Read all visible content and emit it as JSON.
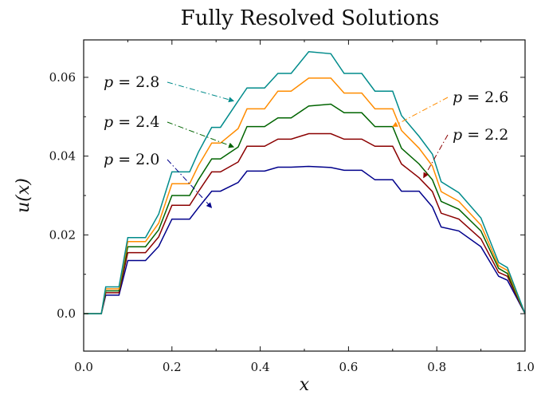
{
  "chart_data": {
    "type": "line",
    "title": "Fully Resolved Solutions",
    "xlabel": "x",
    "ylabel": "u(x)",
    "xlim": [
      0.0,
      1.0
    ],
    "ylim": [
      -0.0095,
      0.0695
    ],
    "xticks": [
      0.0,
      0.2,
      0.4,
      0.6,
      0.8,
      1.0
    ],
    "xtick_labels": [
      "0.0",
      "0.2",
      "0.4",
      "0.6",
      "0.8",
      "1.0"
    ],
    "yticks": [
      0.0,
      0.02,
      0.04,
      0.06
    ],
    "ytick_labels": [
      "0.0",
      "0.02",
      "0.04",
      "0.06"
    ],
    "grid": false,
    "legend": "none",
    "x": [
      0.0,
      0.04,
      0.05,
      0.08,
      0.1,
      0.14,
      0.17,
      0.2,
      0.24,
      0.26,
      0.29,
      0.31,
      0.35,
      0.37,
      0.41,
      0.44,
      0.47,
      0.51,
      0.56,
      0.59,
      0.63,
      0.66,
      0.7,
      0.72,
      0.76,
      0.79,
      0.81,
      0.85,
      0.9,
      0.94,
      0.96,
      1.0
    ],
    "series": [
      {
        "name": "p = 2.0",
        "color": "#00008b",
        "values": [
          0.0,
          0.0,
          0.0047,
          0.0047,
          0.0135,
          0.0135,
          0.0171,
          0.024,
          0.024,
          0.0269,
          0.0311,
          0.0311,
          0.0333,
          0.0362,
          0.0362,
          0.0372,
          0.0372,
          0.0374,
          0.0371,
          0.0364,
          0.0364,
          0.034,
          0.034,
          0.0311,
          0.0311,
          0.0271,
          0.022,
          0.021,
          0.017,
          0.0095,
          0.0085,
          0.0
        ]
      },
      {
        "name": "p = 2.2",
        "color": "#8b0000",
        "values": [
          0.0,
          0.0,
          0.0053,
          0.0053,
          0.0155,
          0.0155,
          0.0195,
          0.0275,
          0.0275,
          0.031,
          0.036,
          0.036,
          0.0385,
          0.0425,
          0.0425,
          0.0443,
          0.0443,
          0.0457,
          0.0457,
          0.0443,
          0.0443,
          0.0425,
          0.0425,
          0.038,
          0.0345,
          0.031,
          0.0255,
          0.024,
          0.019,
          0.0105,
          0.0095,
          0.0
        ]
      },
      {
        "name": "p = 2.4",
        "color": "#006400",
        "values": [
          0.0,
          0.0,
          0.0058,
          0.0058,
          0.017,
          0.017,
          0.0213,
          0.03,
          0.03,
          0.034,
          0.0393,
          0.0393,
          0.0423,
          0.0475,
          0.0475,
          0.0497,
          0.0497,
          0.0527,
          0.0532,
          0.051,
          0.051,
          0.0475,
          0.0475,
          0.042,
          0.038,
          0.034,
          0.0285,
          0.0265,
          0.021,
          0.0115,
          0.0102,
          0.0
        ]
      },
      {
        "name": "p = 2.6",
        "color": "#ff8c00",
        "values": [
          0.0,
          0.0,
          0.0063,
          0.0063,
          0.0183,
          0.0183,
          0.023,
          0.033,
          0.033,
          0.0376,
          0.0433,
          0.0433,
          0.047,
          0.052,
          0.052,
          0.0565,
          0.0565,
          0.0598,
          0.0598,
          0.056,
          0.056,
          0.052,
          0.052,
          0.0465,
          0.042,
          0.0375,
          0.031,
          0.0285,
          0.0225,
          0.0122,
          0.011,
          0.0
        ]
      },
      {
        "name": "p = 2.8",
        "color": "#008b8b",
        "values": [
          0.0,
          0.0,
          0.0068,
          0.0068,
          0.0193,
          0.0193,
          0.0253,
          0.036,
          0.036,
          0.041,
          0.0473,
          0.0473,
          0.054,
          0.0573,
          0.0573,
          0.061,
          0.061,
          0.0665,
          0.066,
          0.061,
          0.061,
          0.0565,
          0.0565,
          0.0503,
          0.045,
          0.0405,
          0.0335,
          0.0307,
          0.0243,
          0.013,
          0.0117,
          0.0
        ]
      }
    ],
    "annotations": [
      {
        "text_var": "p",
        "text_op": "=",
        "text_num": "2.8",
        "series": 4,
        "x": 0.34,
        "y": 0.054,
        "dir": "left"
      },
      {
        "text_var": "p",
        "text_op": "=",
        "text_num": "2.4",
        "series": 2,
        "x": 0.34,
        "y": 0.0423,
        "dir": "left"
      },
      {
        "text_var": "p",
        "text_op": "=",
        "text_num": "2.0",
        "series": 0,
        "x": 0.29,
        "y": 0.0269,
        "dir": "left"
      },
      {
        "text_var": "p",
        "text_op": "=",
        "text_num": "2.6",
        "series": 3,
        "x": 0.7,
        "y": 0.0475,
        "dir": "right"
      },
      {
        "text_var": "p",
        "text_op": "=",
        "text_num": "2.2",
        "series": 1,
        "x": 0.77,
        "y": 0.0345,
        "dir": "right"
      }
    ]
  }
}
